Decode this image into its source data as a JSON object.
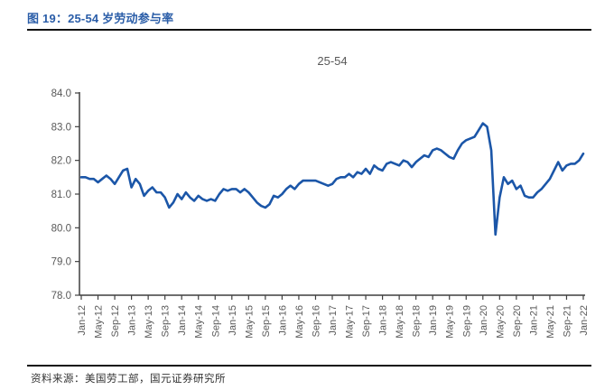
{
  "header": {
    "title": "图 19：25-54 岁劳动参与率"
  },
  "footer": {
    "source": "资料来源：美国劳工部，国元证券研究所"
  },
  "colors": {
    "line": "#1B56A8",
    "title_text": "#2A5DA8",
    "axis": "#3F3F3F",
    "tick_text": "#595959",
    "rule": "#111111"
  },
  "chart_data": {
    "type": "line",
    "title": "25-54",
    "series_name": "25-54 岁劳动参与率",
    "frequency": "monthly",
    "x_start": "Jan-12",
    "x_end": "Jan-22",
    "xlabel": "",
    "ylabel": "",
    "ylim": [
      78.0,
      84.0
    ],
    "y_ticks": [
      "84.0",
      "83.0",
      "82.0",
      "81.0",
      "80.0",
      "79.0",
      "78.0"
    ],
    "grid": false,
    "legend": "none",
    "x_tick_labels": [
      "Jan-12",
      "May-12",
      "Sep-12",
      "Jan-13",
      "May-13",
      "Sep-13",
      "Jan-14",
      "May-14",
      "Sep-14",
      "Jan-15",
      "May-15",
      "Sep-15",
      "Jan-16",
      "May-16",
      "Sep-16",
      "Jan-17",
      "May-17",
      "Sep-17",
      "Jan-18",
      "May-18",
      "Sep-18",
      "Jan-19",
      "May-19",
      "Sep-19",
      "Jan-20",
      "May-20",
      "Sep-20",
      "Jan-21",
      "May-21",
      "Sep-21",
      "Jan-22"
    ],
    "x_tick_step_months": 4,
    "values": [
      81.5,
      81.5,
      81.45,
      81.45,
      81.35,
      81.45,
      81.55,
      81.45,
      81.3,
      81.5,
      81.7,
      81.75,
      81.2,
      81.45,
      81.3,
      80.95,
      81.1,
      81.2,
      81.05,
      81.05,
      80.9,
      80.6,
      80.75,
      81.0,
      80.85,
      81.05,
      80.9,
      80.8,
      80.95,
      80.85,
      80.8,
      80.85,
      80.8,
      81.0,
      81.15,
      81.1,
      81.15,
      81.15,
      81.05,
      81.15,
      81.05,
      80.9,
      80.75,
      80.65,
      80.6,
      80.7,
      80.95,
      80.9,
      81.0,
      81.15,
      81.25,
      81.15,
      81.3,
      81.4,
      81.4,
      81.4,
      81.4,
      81.35,
      81.3,
      81.25,
      81.3,
      81.45,
      81.5,
      81.5,
      81.6,
      81.5,
      81.65,
      81.6,
      81.75,
      81.6,
      81.85,
      81.75,
      81.7,
      81.9,
      81.95,
      81.9,
      81.85,
      82.0,
      81.95,
      81.8,
      81.95,
      82.05,
      82.15,
      82.1,
      82.3,
      82.35,
      82.3,
      82.2,
      82.1,
      82.05,
      82.3,
      82.5,
      82.6,
      82.65,
      82.7,
      82.9,
      83.1,
      83.0,
      82.3,
      79.8,
      80.9,
      81.5,
      81.3,
      81.4,
      81.15,
      81.25,
      80.95,
      80.9,
      80.9,
      81.05,
      81.15,
      81.3,
      81.45,
      81.7,
      81.95,
      81.7,
      81.85,
      81.9,
      81.9,
      82.0,
      82.2
    ]
  }
}
